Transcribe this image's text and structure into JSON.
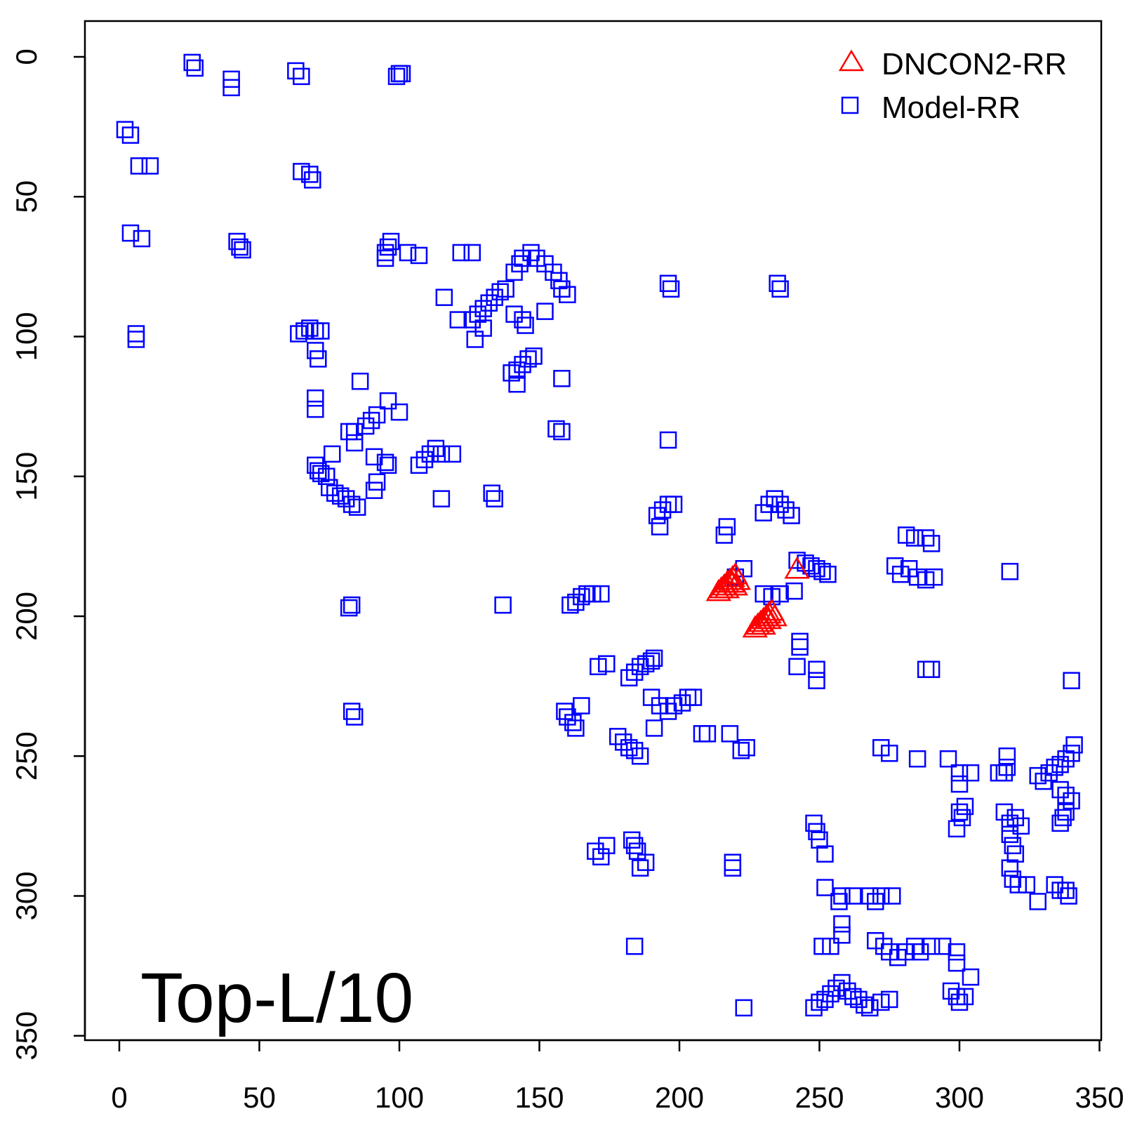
{
  "chart_data": {
    "type": "scatter",
    "title": "",
    "xlabel": "",
    "ylabel": "",
    "annotation": "Top-L/10",
    "xlim": [
      -12,
      350
    ],
    "ylim": [
      350,
      -12
    ],
    "y_axis_inverted": true,
    "grid": false,
    "legend_position": "top-right",
    "x_ticks": [
      0,
      50,
      100,
      150,
      200,
      250,
      300,
      350
    ],
    "y_ticks": [
      0,
      50,
      100,
      150,
      200,
      250,
      300,
      350
    ],
    "series": [
      {
        "name": "DNCON2-RR",
        "marker": "triangle",
        "color": "#ff0000",
        "points": [
          [
            214,
            191
          ],
          [
            215,
            190
          ],
          [
            216,
            189
          ],
          [
            217,
            188
          ],
          [
            218,
            187
          ],
          [
            219,
            186
          ],
          [
            220,
            185
          ],
          [
            219,
            188
          ],
          [
            217,
            190
          ],
          [
            220,
            189
          ],
          [
            221,
            187
          ],
          [
            242,
            183
          ],
          [
            227,
            204
          ],
          [
            228,
            203
          ],
          [
            229,
            202
          ],
          [
            230,
            201
          ],
          [
            231,
            200
          ],
          [
            232,
            199
          ],
          [
            233,
            198
          ],
          [
            230,
            203
          ],
          [
            232,
            201
          ],
          [
            234,
            200
          ]
        ]
      },
      {
        "name": "Model-RR",
        "marker": "square",
        "color": "#0000ff",
        "points": [
          [
            26,
            2
          ],
          [
            27,
            4
          ],
          [
            40,
            8
          ],
          [
            40,
            11
          ],
          [
            63,
            5
          ],
          [
            65,
            7
          ],
          [
            100,
            6
          ],
          [
            101,
            6
          ],
          [
            99,
            7
          ],
          [
            2,
            26
          ],
          [
            4,
            28
          ],
          [
            7,
            39
          ],
          [
            11,
            39
          ],
          [
            65,
            41
          ],
          [
            68,
            42
          ],
          [
            69,
            44
          ],
          [
            4,
            63
          ],
          [
            8,
            65
          ],
          [
            42,
            66
          ],
          [
            43,
            68
          ],
          [
            44,
            69
          ],
          [
            6,
            99
          ],
          [
            6,
            101
          ],
          [
            97,
            66
          ],
          [
            96,
            68
          ],
          [
            95,
            70
          ],
          [
            95,
            72
          ],
          [
            103,
            70
          ],
          [
            107,
            71
          ],
          [
            122,
            70
          ],
          [
            126,
            70
          ],
          [
            144,
            72
          ],
          [
            147,
            70
          ],
          [
            149,
            72
          ],
          [
            143,
            74
          ],
          [
            141,
            77
          ],
          [
            152,
            74
          ],
          [
            155,
            77
          ],
          [
            157,
            80
          ],
          [
            158,
            83
          ],
          [
            160,
            85
          ],
          [
            126,
            94
          ],
          [
            128,
            92
          ],
          [
            130,
            90
          ],
          [
            132,
            88
          ],
          [
            134,
            86
          ],
          [
            136,
            84
          ],
          [
            138,
            83
          ],
          [
            127,
            101
          ],
          [
            130,
            97
          ],
          [
            116,
            86
          ],
          [
            121,
            94
          ],
          [
            141,
            92
          ],
          [
            144,
            94
          ],
          [
            145,
            96
          ],
          [
            152,
            91
          ],
          [
            197,
            83
          ],
          [
            196,
            81
          ],
          [
            235,
            81
          ],
          [
            236,
            83
          ],
          [
            64,
            99
          ],
          [
            66,
            98
          ],
          [
            68,
            97
          ],
          [
            70,
            98
          ],
          [
            72,
            98
          ],
          [
            70,
            105
          ],
          [
            71,
            108
          ],
          [
            86,
            116
          ],
          [
            140,
            113
          ],
          [
            142,
            112
          ],
          [
            144,
            110
          ],
          [
            146,
            108
          ],
          [
            148,
            107
          ],
          [
            142,
            117
          ],
          [
            158,
            115
          ],
          [
            70,
            122
          ],
          [
            70,
            126
          ],
          [
            96,
            123
          ],
          [
            100,
            127
          ],
          [
            92,
            128
          ],
          [
            90,
            130
          ],
          [
            88,
            132
          ],
          [
            84,
            134
          ],
          [
            82,
            134
          ],
          [
            84,
            138
          ],
          [
            156,
            133
          ],
          [
            158,
            134
          ],
          [
            196,
            137
          ],
          [
            107,
            146
          ],
          [
            109,
            144
          ],
          [
            111,
            142
          ],
          [
            113,
            140
          ],
          [
            115,
            142
          ],
          [
            119,
            142
          ],
          [
            70,
            146
          ],
          [
            71,
            148
          ],
          [
            72,
            149
          ],
          [
            74,
            150
          ],
          [
            76,
            142
          ],
          [
            75,
            154
          ],
          [
            77,
            156
          ],
          [
            79,
            157
          ],
          [
            81,
            158
          ],
          [
            83,
            160
          ],
          [
            85,
            161
          ],
          [
            91,
            143
          ],
          [
            95,
            145
          ],
          [
            96,
            146
          ],
          [
            91,
            155
          ],
          [
            92,
            152
          ],
          [
            115,
            158
          ],
          [
            133,
            156
          ],
          [
            134,
            158
          ],
          [
            192,
            164
          ],
          [
            194,
            162
          ],
          [
            196,
            160
          ],
          [
            198,
            160
          ],
          [
            193,
            168
          ],
          [
            230,
            163
          ],
          [
            232,
            160
          ],
          [
            234,
            158
          ],
          [
            236,
            160
          ],
          [
            238,
            162
          ],
          [
            240,
            164
          ],
          [
            216,
            171
          ],
          [
            217,
            168
          ],
          [
            223,
            183
          ],
          [
            220,
            186
          ],
          [
            245,
            181
          ],
          [
            247,
            182
          ],
          [
            249,
            183
          ],
          [
            251,
            184
          ],
          [
            253,
            185
          ],
          [
            242,
            180
          ],
          [
            281,
            171
          ],
          [
            284,
            172
          ],
          [
            288,
            172
          ],
          [
            290,
            174
          ],
          [
            277,
            182
          ],
          [
            279,
            185
          ],
          [
            282,
            183
          ],
          [
            285,
            186
          ],
          [
            288,
            187
          ],
          [
            291,
            186
          ],
          [
            318,
            184
          ],
          [
            161,
            196
          ],
          [
            163,
            195
          ],
          [
            165,
            193
          ],
          [
            167,
            192
          ],
          [
            169,
            192
          ],
          [
            172,
            192
          ],
          [
            83,
            196
          ],
          [
            82,
            197
          ],
          [
            137,
            196
          ],
          [
            230,
            192
          ],
          [
            233,
            193
          ],
          [
            236,
            192
          ],
          [
            241,
            191
          ],
          [
            243,
            209
          ],
          [
            243,
            211
          ],
          [
            242,
            218
          ],
          [
            249,
            219
          ],
          [
            249,
            223
          ],
          [
            288,
            219
          ],
          [
            290,
            219
          ],
          [
            340,
            223
          ],
          [
            171,
            218
          ],
          [
            174,
            217
          ],
          [
            182,
            222
          ],
          [
            184,
            220
          ],
          [
            186,
            218
          ],
          [
            188,
            217
          ],
          [
            190,
            216
          ],
          [
            191,
            215
          ],
          [
            190,
            229
          ],
          [
            193,
            232
          ],
          [
            196,
            234
          ],
          [
            198,
            232
          ],
          [
            201,
            231
          ],
          [
            203,
            229
          ],
          [
            205,
            229
          ],
          [
            191,
            240
          ],
          [
            159,
            234
          ],
          [
            160,
            236
          ],
          [
            162,
            238
          ],
          [
            163,
            240
          ],
          [
            165,
            232
          ],
          [
            83,
            234
          ],
          [
            84,
            236
          ],
          [
            178,
            243
          ],
          [
            180,
            245
          ],
          [
            182,
            247
          ],
          [
            184,
            248
          ],
          [
            186,
            250
          ],
          [
            208,
            242
          ],
          [
            210,
            242
          ],
          [
            218,
            242
          ],
          [
            222,
            248
          ],
          [
            224,
            247
          ],
          [
            272,
            247
          ],
          [
            275,
            249
          ],
          [
            285,
            251
          ],
          [
            296,
            251
          ],
          [
            300,
            256
          ],
          [
            300,
            260
          ],
          [
            304,
            256
          ],
          [
            314,
            256
          ],
          [
            316,
            256
          ],
          [
            317,
            250
          ],
          [
            317,
            254
          ],
          [
            328,
            257
          ],
          [
            330,
            259
          ],
          [
            332,
            256
          ],
          [
            334,
            254
          ],
          [
            336,
            253
          ],
          [
            338,
            251
          ],
          [
            340,
            249
          ],
          [
            341,
            246
          ],
          [
            336,
            262
          ],
          [
            338,
            264
          ],
          [
            340,
            266
          ],
          [
            338,
            270
          ],
          [
            336,
            274
          ],
          [
            337,
            272
          ],
          [
            300,
            270
          ],
          [
            302,
            268
          ],
          [
            301,
            272
          ],
          [
            299,
            276
          ],
          [
            316,
            270
          ],
          [
            318,
            274
          ],
          [
            320,
            272
          ],
          [
            322,
            275
          ],
          [
            318,
            278
          ],
          [
            319,
            282
          ],
          [
            320,
            285
          ],
          [
            318,
            290
          ],
          [
            319,
            294
          ],
          [
            321,
            296
          ],
          [
            324,
            296
          ],
          [
            248,
            274
          ],
          [
            249,
            277
          ],
          [
            250,
            280
          ],
          [
            252,
            285
          ],
          [
            170,
            284
          ],
          [
            172,
            286
          ],
          [
            174,
            282
          ],
          [
            183,
            280
          ],
          [
            184,
            282
          ],
          [
            186,
            290
          ],
          [
            188,
            288
          ],
          [
            185,
            284
          ],
          [
            219,
            288
          ],
          [
            219,
            290
          ],
          [
            252,
            297
          ],
          [
            258,
            300
          ],
          [
            262,
            300
          ],
          [
            257,
            302
          ],
          [
            258,
            310
          ],
          [
            258,
            314
          ],
          [
            268,
            300
          ],
          [
            270,
            302
          ],
          [
            272,
            300
          ],
          [
            276,
            300
          ],
          [
            334,
            296
          ],
          [
            336,
            298
          ],
          [
            338,
            298
          ],
          [
            339,
            300
          ],
          [
            328,
            302
          ],
          [
            251,
            318
          ],
          [
            254,
            318
          ],
          [
            270,
            316
          ],
          [
            273,
            318
          ],
          [
            275,
            320
          ],
          [
            278,
            322
          ],
          [
            281,
            320
          ],
          [
            284,
            318
          ],
          [
            286,
            320
          ],
          [
            290,
            318
          ],
          [
            294,
            318
          ],
          [
            299,
            320
          ],
          [
            299,
            324
          ],
          [
            304,
            329
          ],
          [
            248,
            340
          ],
          [
            250,
            338
          ],
          [
            252,
            337
          ],
          [
            254,
            335
          ],
          [
            256,
            333
          ],
          [
            258,
            331
          ],
          [
            260,
            334
          ],
          [
            262,
            336
          ],
          [
            264,
            337
          ],
          [
            266,
            339
          ],
          [
            268,
            340
          ],
          [
            272,
            338
          ],
          [
            275,
            337
          ],
          [
            297,
            334
          ],
          [
            299,
            336
          ],
          [
            300,
            338
          ],
          [
            302,
            336
          ],
          [
            184,
            318
          ],
          [
            223,
            340
          ]
        ]
      }
    ]
  }
}
